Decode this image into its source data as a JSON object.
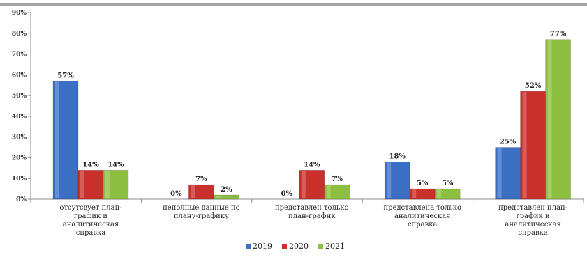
{
  "chart_data": {
    "type": "bar",
    "categories": [
      [
        "отсутсвует план-",
        "график и",
        "аналитическая",
        "справка"
      ],
      [
        "неполные данные по",
        "плану-графику"
      ],
      [
        "представлен только",
        "план-график"
      ],
      [
        "представлена только",
        "аналитическая",
        "справка"
      ],
      [
        "представлен план-",
        "график и",
        "аналитическая",
        "справка"
      ]
    ],
    "series": [
      {
        "name": "2019",
        "color": "#3b6fc4",
        "values": [
          57,
          0,
          0,
          18,
          25
        ],
        "labels": [
          "57%",
          "0%",
          "0%",
          "18%",
          "25%"
        ]
      },
      {
        "name": "2020",
        "color": "#c9302c",
        "values": [
          14,
          7,
          14,
          5,
          52
        ],
        "labels": [
          "14%",
          "7%",
          "14%",
          "5%",
          "52%"
        ]
      },
      {
        "name": "2021",
        "color": "#8cbf3f",
        "values": [
          14,
          2,
          7,
          5,
          77
        ],
        "labels": [
          "14%",
          "2%",
          "7%",
          "5%",
          "77%"
        ]
      }
    ],
    "yticks": [
      "0%",
      "10%",
      "20%",
      "30%",
      "40%",
      "50%",
      "60%",
      "70%",
      "80%",
      "90%"
    ],
    "ylim": [
      0,
      90
    ],
    "grid": false,
    "legend": "bottom-center"
  }
}
